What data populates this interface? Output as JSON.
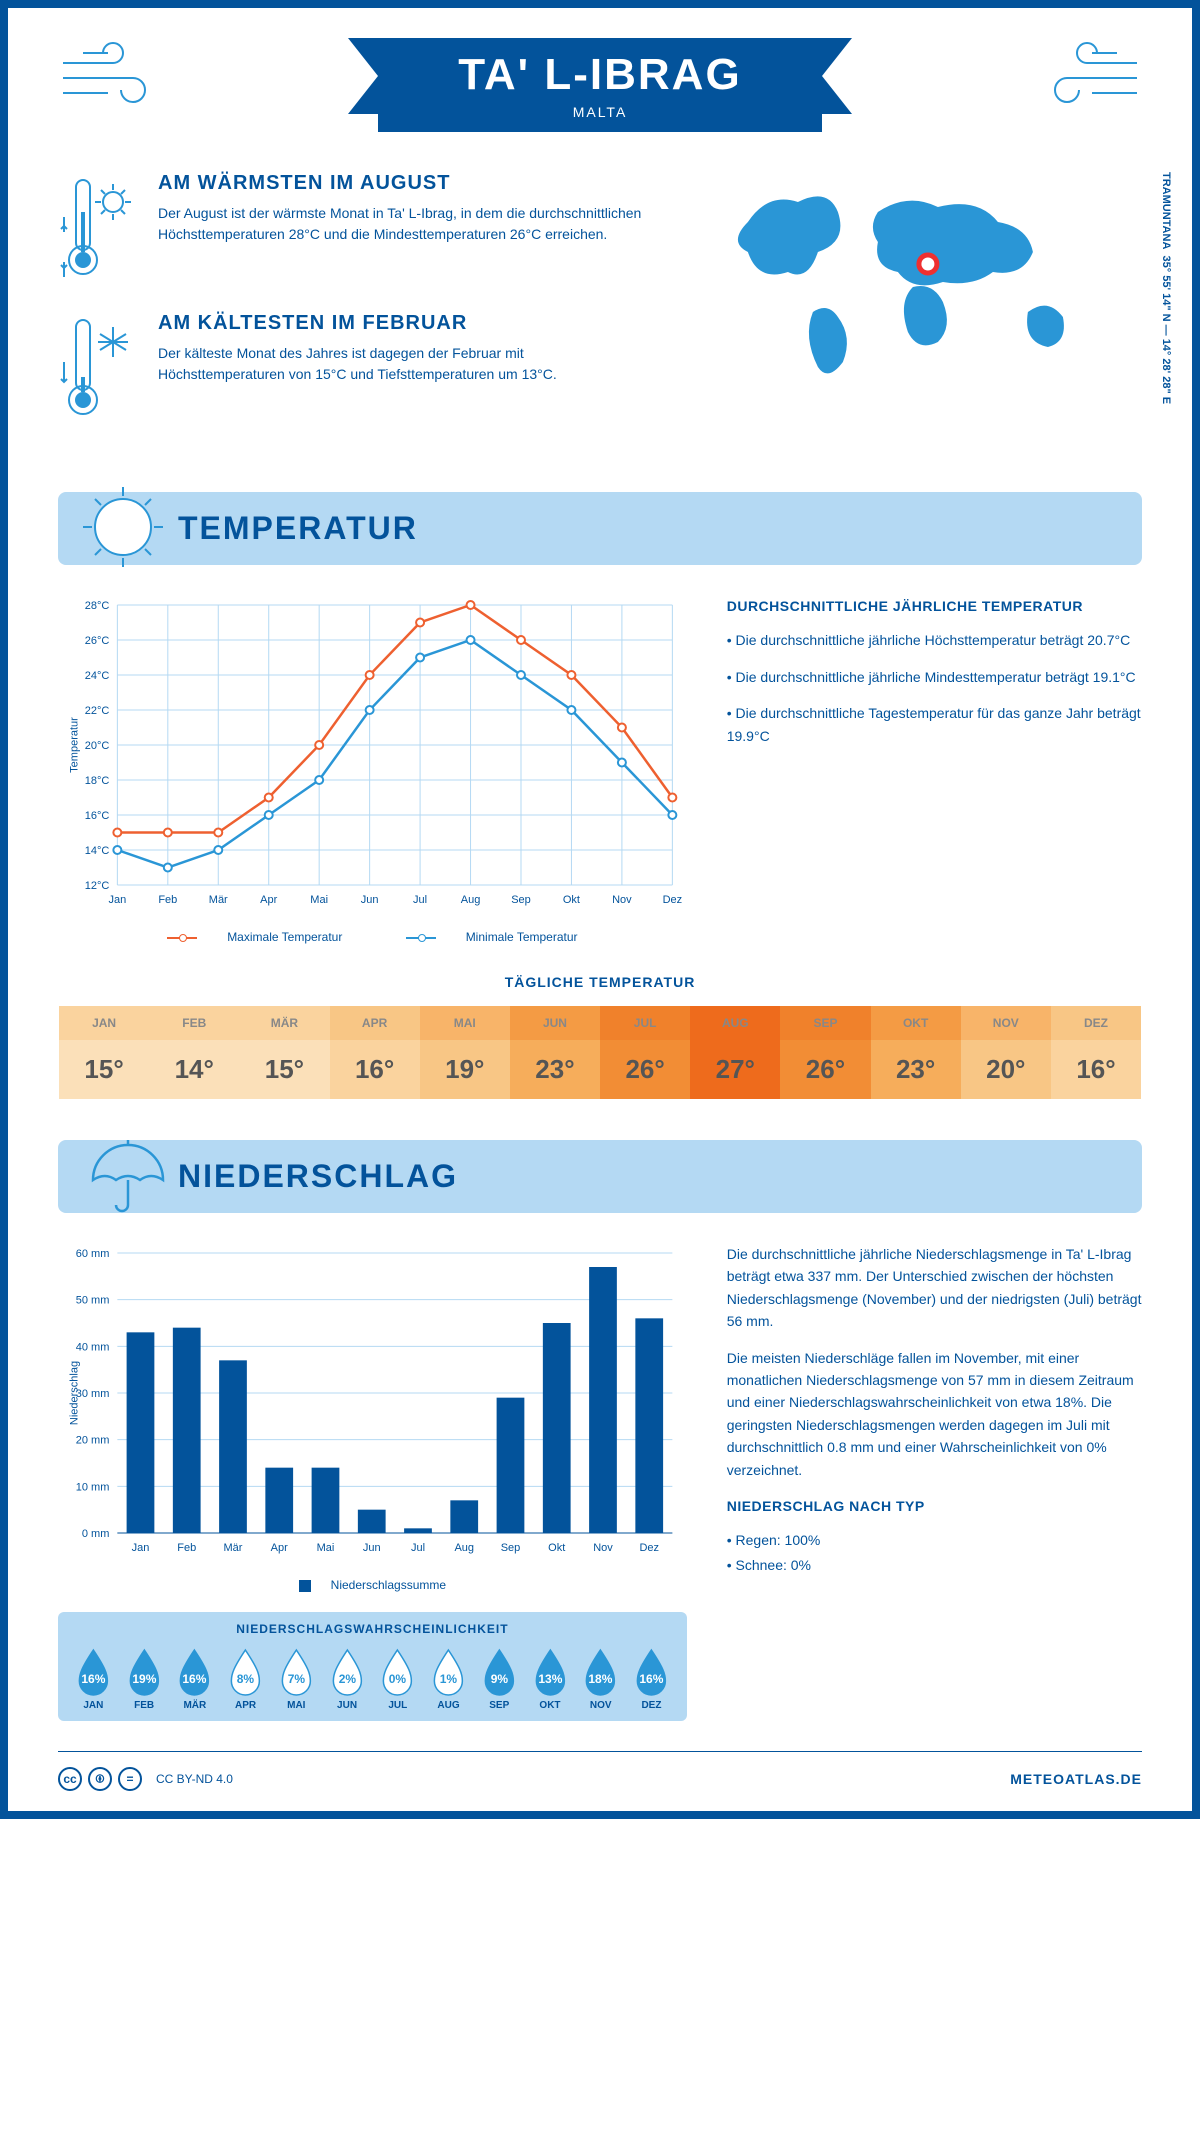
{
  "header": {
    "title": "TA' L-IBRAG",
    "subtitle": "MALTA"
  },
  "coords": "35° 55' 14\" N — 14° 28' 28\" E",
  "coords_label": "TRAMUNTANA",
  "warmest": {
    "heading": "AM WÄRMSTEN IM AUGUST",
    "text": "Der August ist der wärmste Monat in Ta' L-Ibrag, in dem die durchschnittlichen Höchsttemperaturen 28°C und die Mindesttemperaturen 26°C erreichen."
  },
  "coldest": {
    "heading": "AM KÄLTESTEN IM FEBRUAR",
    "text": "Der kälteste Monat des Jahres ist dagegen der Februar mit Höchsttemperaturen von 15°C und Tiefsttemperaturen um 13°C."
  },
  "sections": {
    "temperature": "TEMPERATUR",
    "precipitation": "NIEDERSCHLAG"
  },
  "temp_chart": {
    "months": [
      "Jan",
      "Feb",
      "Mär",
      "Apr",
      "Mai",
      "Jun",
      "Jul",
      "Aug",
      "Sep",
      "Okt",
      "Nov",
      "Dez"
    ],
    "max": [
      15,
      15,
      15,
      17,
      20,
      24,
      27,
      28,
      26,
      24,
      21,
      17
    ],
    "min": [
      14,
      13,
      14,
      16,
      18,
      22,
      25,
      26,
      24,
      22,
      19,
      16
    ],
    "ylabel": "Temperatur",
    "ylim": [
      12,
      28
    ],
    "ytick_step": 2,
    "max_color": "#ee6030",
    "min_color": "#2a96d6",
    "grid_color": "#b4d9f3",
    "legend_max": "Maximale Temperatur",
    "legend_min": "Minimale Temperatur"
  },
  "temp_info": {
    "heading": "DURCHSCHNITTLICHE JÄHRLICHE TEMPERATUR",
    "b1": "• Die durchschnittliche jährliche Höchsttemperatur beträgt 20.7°C",
    "b2": "• Die durchschnittliche jährliche Mindesttemperatur beträgt 19.1°C",
    "b3": "• Die durchschnittliche Tagestemperatur für das ganze Jahr beträgt 19.9°C"
  },
  "daily_temp": {
    "title": "TÄGLICHE TEMPERATUR",
    "months": [
      "JAN",
      "FEB",
      "MÄR",
      "APR",
      "MAI",
      "JUN",
      "JUL",
      "AUG",
      "SEP",
      "OKT",
      "NOV",
      "DEZ"
    ],
    "values": [
      "15°",
      "14°",
      "15°",
      "16°",
      "19°",
      "23°",
      "26°",
      "27°",
      "26°",
      "23°",
      "20°",
      "16°"
    ],
    "header_colors": [
      "#fad39e",
      "#fad39e",
      "#fad39e",
      "#f8c685",
      "#f8b469",
      "#f49b44",
      "#f0812b",
      "#ee6b1c",
      "#f0812b",
      "#f49b44",
      "#f8b469",
      "#f8c685"
    ],
    "value_colors": [
      "#fbe0b9",
      "#fbe0b9",
      "#fbe0b9",
      "#fad39e",
      "#f8c685",
      "#f6ad5b",
      "#f28d35",
      "#ee6b1c",
      "#f28d35",
      "#f6ad5b",
      "#f8c685",
      "#fad39e"
    ]
  },
  "precip_chart": {
    "months": [
      "Jan",
      "Feb",
      "Mär",
      "Apr",
      "Mai",
      "Jun",
      "Jul",
      "Aug",
      "Sep",
      "Okt",
      "Nov",
      "Dez"
    ],
    "values": [
      43,
      44,
      37,
      14,
      14,
      5,
      1,
      7,
      29,
      45,
      57,
      46
    ],
    "ylabel": "Niederschlag",
    "ylim": [
      0,
      60
    ],
    "ytick_step": 10,
    "bar_color": "#03539b",
    "grid_color": "#b4d9f3",
    "legend": "Niederschlagssumme"
  },
  "precip_info": {
    "p1": "Die durchschnittliche jährliche Niederschlagsmenge in Ta' L-Ibrag beträgt etwa 337 mm. Der Unterschied zwischen der höchsten Niederschlagsmenge (November) und der niedrigsten (Juli) beträgt 56 mm.",
    "p2": "Die meisten Niederschläge fallen im November, mit einer monatlichen Niederschlagsmenge von 57 mm in diesem Zeitraum und einer Niederschlagswahrscheinlichkeit von etwa 18%. Die geringsten Niederschlagsmengen werden dagegen im Juli mit durchschnittlich 0.8 mm und einer Wahrscheinlichkeit von 0% verzeichnet.",
    "type_heading": "NIEDERSCHLAG NACH TYP",
    "rain": "• Regen: 100%",
    "snow": "• Schnee: 0%"
  },
  "probability": {
    "title": "NIEDERSCHLAGSWAHRSCHEINLICHKEIT",
    "months": [
      "JAN",
      "FEB",
      "MÄR",
      "APR",
      "MAI",
      "JUN",
      "JUL",
      "AUG",
      "SEP",
      "OKT",
      "NOV",
      "DEZ"
    ],
    "values": [
      "16%",
      "19%",
      "16%",
      "8%",
      "7%",
      "2%",
      "0%",
      "1%",
      "9%",
      "13%",
      "18%",
      "16%"
    ],
    "raw": [
      16,
      19,
      16,
      8,
      7,
      2,
      0,
      1,
      9,
      13,
      18,
      16
    ]
  },
  "footer": {
    "license": "CC BY-ND 4.0",
    "source": "METEOATLAS.DE"
  },
  "colors": {
    "primary": "#03539b",
    "light": "#2a96d6",
    "paleblue": "#b4d9f3"
  }
}
